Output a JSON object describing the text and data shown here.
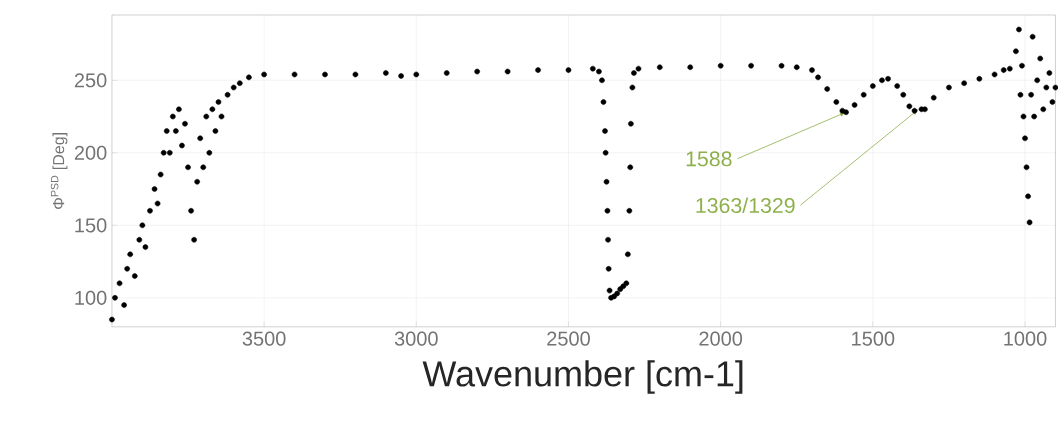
{
  "chart_data": {
    "type": "scatter",
    "xlabel": "Wavenumber [cm-1]",
    "ylabel": "Φ$^{PSD}$ [Deg]",
    "xlim": [
      4000,
      900
    ],
    "ylim": [
      80,
      295
    ],
    "xticks": [
      3500,
      3000,
      2500,
      2000,
      1500,
      1000
    ],
    "yticks": [
      100,
      150,
      200,
      250
    ],
    "grid": true,
    "marker": "circle",
    "annotations": [
      {
        "text": "1588",
        "x": 1588,
        "y": 228
      },
      {
        "text": "1363/1329",
        "x": 1350,
        "y": 230
      }
    ],
    "series": [
      {
        "color": "#000000",
        "x": [
          4000,
          3990,
          3975,
          3960,
          3950,
          3940,
          3925,
          3910,
          3900,
          3890,
          3875,
          3860,
          3850,
          3840,
          3830,
          3820,
          3810,
          3800,
          3790,
          3780,
          3770,
          3760,
          3750,
          3740,
          3730,
          3720,
          3710,
          3700,
          3690,
          3680,
          3670,
          3660,
          3650,
          3640,
          3620,
          3600,
          3580,
          3550,
          3500,
          3400,
          3300,
          3200,
          3100,
          3050,
          3000,
          2900,
          2800,
          2700,
          2600,
          2500,
          2420,
          2400,
          2390,
          2385,
          2380,
          2378,
          2375,
          2372,
          2370,
          2368,
          2365,
          2360,
          2350,
          2340,
          2330,
          2320,
          2310,
          2305,
          2300,
          2297,
          2295,
          2290,
          2285,
          2270,
          2200,
          2100,
          2000,
          1900,
          1800,
          1750,
          1700,
          1680,
          1650,
          1620,
          1600,
          1588,
          1560,
          1530,
          1500,
          1470,
          1450,
          1420,
          1400,
          1380,
          1363,
          1340,
          1329,
          1300,
          1250,
          1200,
          1150,
          1100,
          1070,
          1050,
          1030,
          1020,
          1015,
          1010,
          1005,
          1000,
          995,
          990,
          985,
          980,
          975,
          970,
          960,
          950,
          940,
          930,
          920,
          910,
          900
        ],
        "values": [
          85,
          100,
          110,
          95,
          120,
          130,
          115,
          140,
          150,
          135,
          160,
          175,
          165,
          185,
          200,
          215,
          200,
          225,
          215,
          230,
          205,
          220,
          190,
          160,
          140,
          180,
          210,
          190,
          225,
          200,
          230,
          215,
          235,
          225,
          240,
          245,
          248,
          252,
          254,
          254,
          254,
          254,
          255,
          253,
          254,
          255,
          256,
          256,
          257,
          257,
          258,
          256,
          250,
          235,
          215,
          200,
          180,
          160,
          140,
          120,
          105,
          100,
          101,
          103,
          106,
          108,
          110,
          130,
          160,
          190,
          220,
          245,
          255,
          258,
          259,
          259,
          260,
          260,
          260,
          259,
          257,
          252,
          244,
          235,
          229,
          228,
          233,
          240,
          246,
          250,
          251,
          246,
          240,
          232,
          229,
          230,
          230,
          238,
          245,
          248,
          251,
          254,
          257,
          258,
          270,
          285,
          240,
          260,
          225,
          210,
          190,
          170,
          152,
          240,
          280,
          225,
          250,
          265,
          230,
          245,
          255,
          235,
          245
        ]
      }
    ]
  }
}
